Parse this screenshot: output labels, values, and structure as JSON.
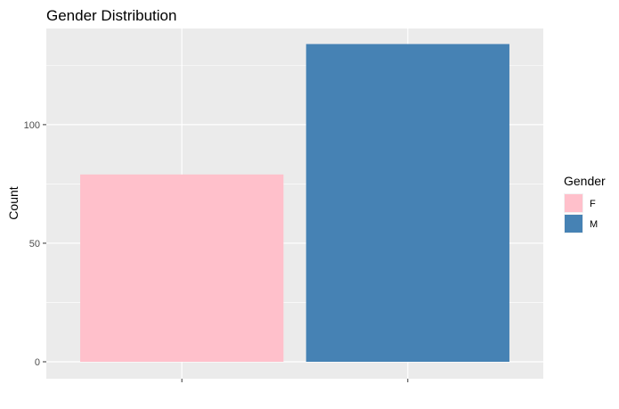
{
  "chart_data": {
    "type": "bar",
    "title": "Gender Distribution",
    "xlabel": "",
    "ylabel": "Count",
    "categories": [
      "F",
      "M"
    ],
    "values": [
      79,
      134
    ],
    "colors": [
      "#FFC0CB",
      "#4682B4"
    ],
    "ylim": [
      0,
      140
    ],
    "y_ticks": [
      0,
      50,
      100
    ],
    "x_tick_labels": [
      "",
      ""
    ],
    "grid": true,
    "panel_background": "#EBEBEB",
    "grid_color": "#FFFFFF",
    "legend": {
      "title": "Gender",
      "position": "right",
      "entries": [
        {
          "label": "F",
          "color": "#FFC0CB"
        },
        {
          "label": "M",
          "color": "#4682B4"
        }
      ]
    }
  }
}
